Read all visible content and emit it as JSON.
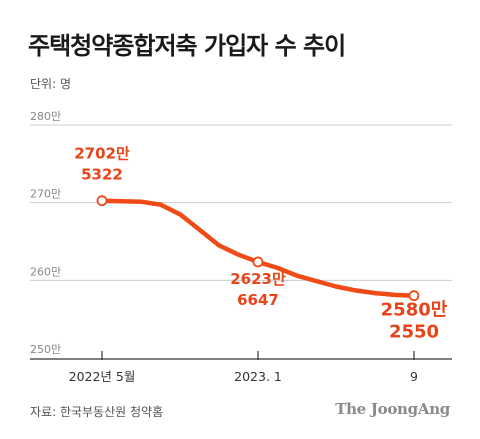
{
  "title": "주택청약종합저축 가입자 수 추이",
  "unit": "단위: 명",
  "source": "자료: 한국부동산원 청약홈",
  "brand": "The JoongAng",
  "colors": {
    "line": "#f04a16",
    "grid": "#cccccc",
    "axis": "#333333",
    "label": "#e8441a"
  },
  "chart_data": {
    "type": "line",
    "y_ticks": [
      "280만",
      "270만",
      "260만",
      "250만"
    ],
    "x_ticks": [
      "2022년 5월",
      "2023. 1",
      "9"
    ],
    "ylim": [
      25000000,
      28000000
    ],
    "series": [
      {
        "name": "",
        "points": [
          {
            "x": "2022-05",
            "y": 27025322
          },
          {
            "x": "2022-07",
            "y": 27012000
          },
          {
            "x": "2022-08",
            "y": 26975000
          },
          {
            "x": "2022-09",
            "y": 26850000
          },
          {
            "x": "2022-10",
            "y": 26650000
          },
          {
            "x": "2022-11",
            "y": 26450000
          },
          {
            "x": "2022-12",
            "y": 26330000
          },
          {
            "x": "2023-01",
            "y": 26236647
          },
          {
            "x": "2023-02",
            "y": 26160000
          },
          {
            "x": "2023-03",
            "y": 26060000
          },
          {
            "x": "2023-05",
            "y": 25920000
          },
          {
            "x": "2023-06",
            "y": 25870000
          },
          {
            "x": "2023-07",
            "y": 25835000
          },
          {
            "x": "2023-08",
            "y": 25812000
          },
          {
            "x": "2023-09",
            "y": 25802550
          }
        ]
      }
    ],
    "annotations": [
      {
        "x": "2022-05",
        "line1": "2702만",
        "line2": "5322"
      },
      {
        "x": "2023-01",
        "line1": "2623만",
        "line2": "6647"
      },
      {
        "x": "2023-09",
        "line1": "2580만",
        "line2": "2550"
      }
    ]
  }
}
